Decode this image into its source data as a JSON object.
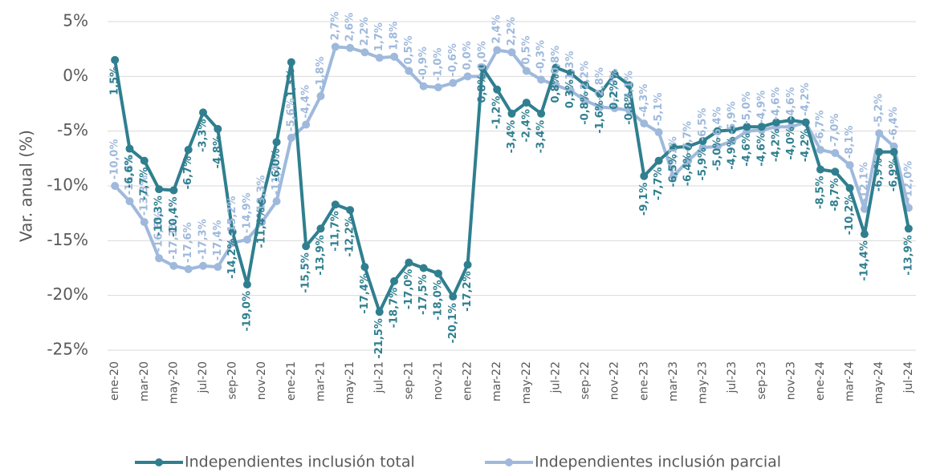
{
  "chart_data": {
    "type": "line",
    "y_label": "Var. anual (%)",
    "categories": [
      "ene-20",
      null,
      "mar-20",
      null,
      "may-20",
      null,
      "jul-20",
      null,
      "sep-20",
      null,
      "nov-20",
      null,
      "ene-21",
      null,
      "mar-21",
      null,
      "may-21",
      null,
      "jul-21",
      null,
      "sep-21",
      null,
      "nov-21",
      null,
      "ene-22",
      null,
      "mar-22",
      null,
      "may-22",
      null,
      "jul-22",
      null,
      "sep-22",
      null,
      "nov-22",
      null,
      "ene-23",
      null,
      "mar-23",
      null,
      "may-23",
      null,
      "jul-23",
      null,
      "sep-23",
      null,
      "nov-23",
      null,
      "ene-24",
      null,
      "mar-24",
      null,
      "may-24",
      null,
      "jul-24"
    ],
    "ylim": [
      -25,
      5
    ],
    "yticks": [
      {
        "value": -25,
        "label": "-25%"
      },
      {
        "value": -20,
        "label": "-20%"
      },
      {
        "value": -15,
        "label": "-15%"
      },
      {
        "value": -10,
        "label": "-10%"
      },
      {
        "value": -5,
        "label": "-5%"
      },
      {
        "value": 0,
        "label": "0%"
      },
      {
        "value": 5,
        "label": "5%"
      }
    ],
    "grid": true,
    "legend": "bottom",
    "series": [
      {
        "name": "Independientes inclusión total",
        "color": "#2f7f8f",
        "label_side": "below",
        "values": [
          1.5,
          -6.6,
          -7.7,
          -10.3,
          -10.4,
          -6.7,
          -3.3,
          -4.8,
          -14.2,
          -19.0,
          -11.4,
          -6.0,
          1.3,
          -15.5,
          -13.9,
          -11.7,
          -12.2,
          -17.4,
          -21.5,
          -18.7,
          -17.0,
          -17.5,
          -18.0,
          -20.1,
          -17.2,
          0.8,
          -1.2,
          -3.4,
          -2.4,
          -3.4,
          0.8,
          0.3,
          -0.8,
          -1.6,
          0.2,
          -0.8,
          -9.1,
          -7.7,
          -6.5,
          -6.4,
          -5.9,
          -5.0,
          -4.9,
          -4.6,
          -4.6,
          -4.2,
          -4.0,
          -4.2,
          -8.5,
          -8.7,
          -10.2,
          -14.4,
          -6.9,
          -6.9,
          -13.9
        ],
        "value_labels": [
          "1,5%",
          "-6,6%",
          "-7,7%",
          "-10,3%",
          "-10,4%",
          "-6,7%",
          "-3,3%",
          "-4,8%",
          "-14,2%",
          "-19,0%",
          "-11,4%",
          "-6,0%",
          "1,3%",
          "-15,5%",
          "-13,9%",
          "-11,7%",
          "-12,2%",
          "-17,4%",
          "-21,5%",
          "-18,7%",
          "-17,0%",
          "-17,5%",
          "-18,0%",
          "-20,1%",
          "-17,2%",
          "0,8%",
          "-1,2%",
          "-3,4%",
          "-2,4%",
          "-3,4%",
          "0,8%",
          "0,3%",
          "-0,8%",
          "-1,6%",
          "0,2%",
          "-0,8%",
          "-9,1%",
          "-7,7%",
          "-6,5%",
          "-6,4%",
          "-5,9%",
          "-5,0%",
          "-4,9%",
          "-4,6%",
          "-4,6%",
          "-4,2%",
          "-4,0%",
          "-4,2%",
          "-8,5%",
          "-8,7%",
          "-10,2%",
          "-14,4%",
          "-6,9%",
          "-6,9%",
          "-13,9%"
        ]
      },
      {
        "name": "Independientes inclusión parcial",
        "color": "#9fb9dc",
        "label_side": "above",
        "values": [
          -10.0,
          -11.4,
          -13.3,
          -16.6,
          -17.3,
          -17.6,
          -17.3,
          -17.4,
          -15.2,
          -14.9,
          -13.3,
          -11.4,
          -5.6,
          -4.4,
          -1.8,
          2.7,
          2.6,
          2.2,
          1.7,
          1.8,
          0.5,
          -0.9,
          -1.0,
          -0.6,
          0.0,
          0.0,
          2.4,
          2.2,
          0.5,
          -0.3,
          -0.8,
          -1.3,
          -2.2,
          -2.8,
          -2.9,
          -3.1,
          -4.3,
          -5.1,
          -9.1,
          -7.7,
          -6.5,
          -6.4,
          -5.9,
          -5.0,
          -4.9,
          -4.6,
          -4.6,
          -4.2,
          -6.7,
          -7.0,
          -8.1,
          -12.1,
          -5.2,
          -6.4,
          -12.0
        ],
        "value_labels": [
          "-10,0%",
          "-11,4%",
          "-13,3%",
          "-16,6%",
          "-17,3%",
          "-17,6%",
          "-17,3%",
          "-17,4%",
          "-15,2%",
          "-14,9%",
          "-13,3%",
          "-11,4%",
          "-5,6%",
          "-4,4%",
          "-1,8%",
          "2,7%",
          "2,6%",
          "2,2%",
          "1,7%",
          "1,8%",
          "0,5%",
          "-0,9%",
          "-1,0%",
          "-0,6%",
          "0,0%",
          "0,0%",
          "2,4%",
          "2,2%",
          "0,5%",
          "-0,3%",
          "-0,8%",
          "-1,3%",
          "-2,2%",
          "-2,8%",
          "-2,9%",
          "-3,1%",
          "-4,3%",
          "-5,1%",
          "-9,1%",
          "-7,7%",
          "-6,5%",
          "-6,4%",
          "-5,9%",
          "-5,0%",
          "-4,9%",
          "-4,6%",
          "-4,6%",
          "-4,2%",
          "-6,7%",
          "-7,0%",
          "-8,1%",
          "-12,1%",
          "-5,2%",
          "-6,4%",
          "-12,0%"
        ]
      }
    ]
  }
}
